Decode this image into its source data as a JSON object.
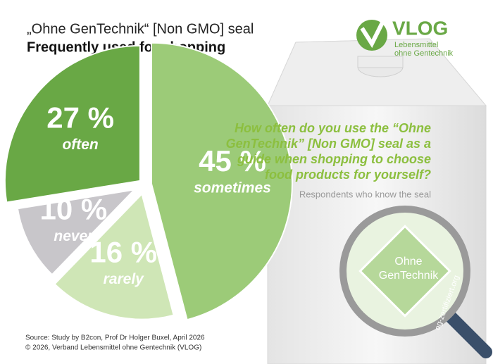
{
  "chart_data": {
    "type": "pie",
    "title": "„Ohne GenTechnik“ [Non GMO] seal",
    "subtitle": "Frequently used for shopping",
    "categories": [
      "sometimes",
      "rarely",
      "never",
      "often"
    ],
    "values": [
      45,
      16,
      10,
      27
    ],
    "value_labels": [
      "45 %",
      "16 %",
      "10 %",
      "27 %"
    ],
    "colors": [
      "#9ccb78",
      "#cfe6b6",
      "#c8c6ca",
      "#69a845"
    ],
    "question": [
      "How often do you use the “Ohne",
      "GenTechnik” [Non GMO] seal as a",
      "guide when shopping to choose",
      "food products for yourself?"
    ],
    "note": "Respondents who know the seal",
    "source": [
      "Source: Study by B2con, Prof Dr Holger Buxel, April 2026",
      "© 2026, Verband  Lebensmittel  ohne Gentechnik  (VLOG)"
    ],
    "logo": {
      "name": "VLOG",
      "line1": "Lebensmittel",
      "line2": "ohne Gentechnik"
    },
    "seal": {
      "line1": "Ohne",
      "line2": "GenTechnik",
      "url": "og-zertifiziert.org"
    }
  }
}
